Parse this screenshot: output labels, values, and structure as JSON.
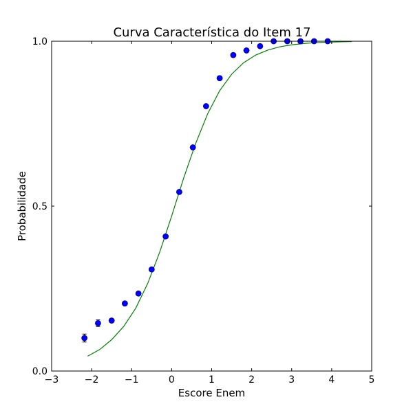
{
  "chart_data": {
    "type": "scatter",
    "title": "Curva Característica do Item 17",
    "xlabel": "Escore Enem",
    "ylabel": "Probabilidade",
    "xlim": [
      -3,
      5
    ],
    "ylim": [
      0,
      1
    ],
    "xticks": [
      -3,
      -2,
      -1,
      0,
      1,
      2,
      3,
      4,
      5
    ],
    "xtick_labels": [
      "−3",
      "−2",
      "−1",
      "0",
      "1",
      "2",
      "3",
      "4",
      "5"
    ],
    "yticks": [
      0,
      0.5,
      1
    ],
    "ytick_labels": [
      "0.0",
      "0.5",
      "1.0"
    ],
    "grid": false,
    "legend": "none",
    "series": [
      {
        "kind": "points",
        "color": "#0000ff",
        "edge_color": "#00008b",
        "x": [
          -2.18,
          -1.84,
          -1.5,
          -1.17,
          -0.83,
          -0.5,
          -0.15,
          0.19,
          0.53,
          0.86,
          1.2,
          1.54,
          1.87,
          2.21,
          2.55,
          2.89,
          3.22,
          3.56,
          3.9
        ],
        "y": [
          0.1,
          0.145,
          0.153,
          0.205,
          0.235,
          0.308,
          0.408,
          0.543,
          0.678,
          0.803,
          0.888,
          0.958,
          0.972,
          0.985,
          1.0,
          1.0,
          1.0,
          1.0,
          1.0
        ],
        "yerr": [
          0.012,
          0.01,
          0.006,
          0.005,
          0.004,
          0.004,
          0.004,
          0.004,
          0.004,
          0.003,
          0.003,
          0.002,
          0.002,
          0.002,
          0.0,
          0.0,
          0.0,
          0.0,
          0.0
        ]
      },
      {
        "kind": "curve",
        "color": "#008000",
        "x": [
          -2.1,
          -1.8,
          -1.5,
          -1.2,
          -0.9,
          -0.6,
          -0.3,
          0.0,
          0.3,
          0.6,
          0.9,
          1.2,
          1.5,
          1.8,
          2.1,
          2.4,
          2.7,
          3.0,
          3.3,
          3.6,
          3.9,
          4.2,
          4.5
        ],
        "y": [
          0.045,
          0.065,
          0.095,
          0.135,
          0.19,
          0.265,
          0.36,
          0.47,
          0.585,
          0.69,
          0.78,
          0.85,
          0.9,
          0.935,
          0.958,
          0.973,
          0.983,
          0.989,
          0.993,
          0.996,
          0.997,
          0.998,
          0.999
        ]
      }
    ]
  }
}
